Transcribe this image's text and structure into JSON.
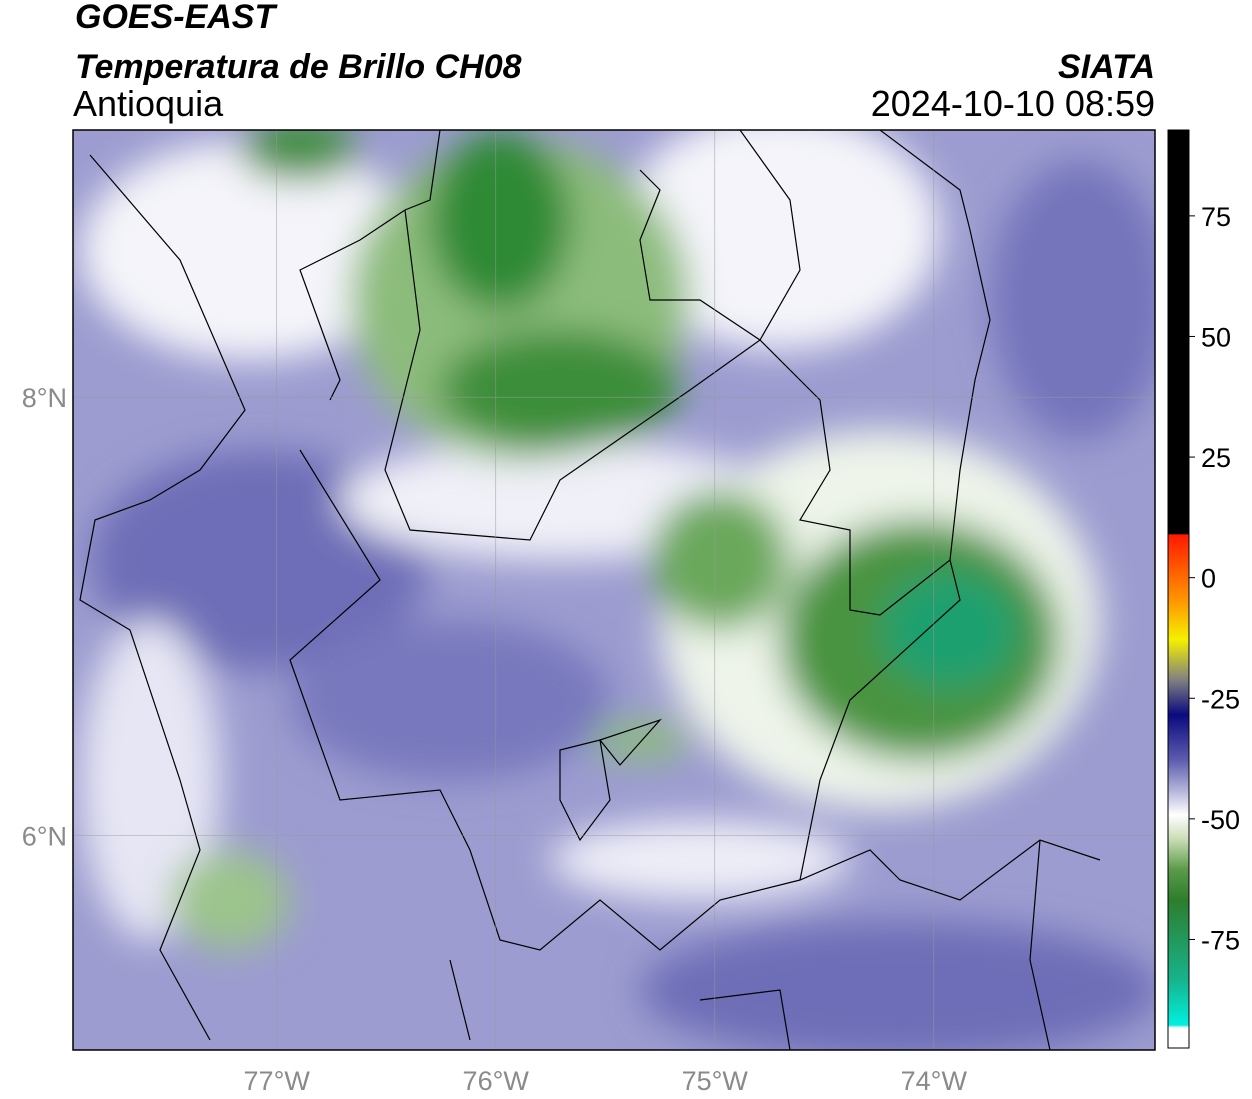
{
  "header": {
    "satellite": "GOES-EAST",
    "title": "Temperatura de Brillo CH08",
    "region": "Antioquia",
    "source": "SIATA",
    "datetime": "2024-10-10 08:59"
  },
  "map": {
    "lonlim": [
      -77.93,
      -72.99
    ],
    "latlim": [
      5.02,
      9.22
    ],
    "lonticks": [
      {
        "value": -77,
        "label": "77°W"
      },
      {
        "value": -76,
        "label": "76°W"
      },
      {
        "value": -75,
        "label": "75°W"
      },
      {
        "value": -74,
        "label": "74°W"
      }
    ],
    "latticks": [
      {
        "value": 8,
        "label": "8°N"
      },
      {
        "value": 6,
        "label": "6°N"
      }
    ],
    "grid": true
  },
  "colorbar": {
    "lim": [
      -97.5,
      92.8
    ],
    "ticks": [
      75,
      50,
      25,
      0,
      -25,
      -50,
      -75
    ]
  }
}
